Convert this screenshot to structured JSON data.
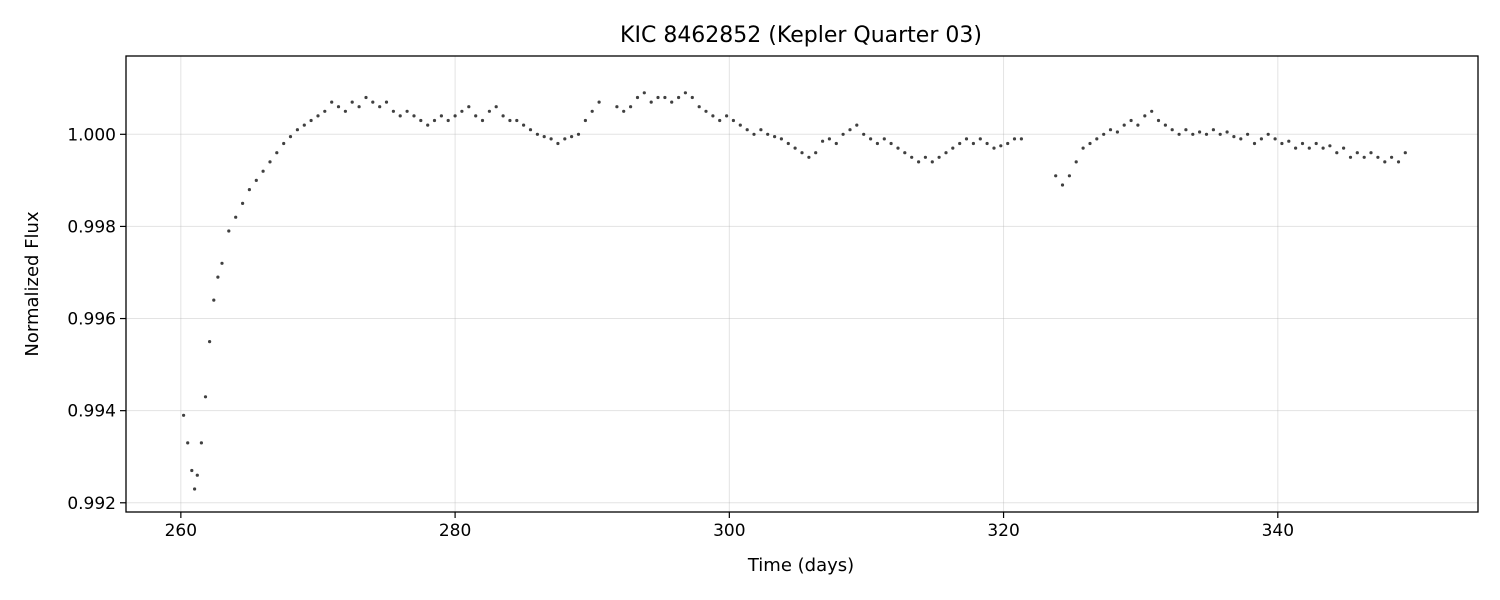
{
  "chart_data": {
    "type": "scatter",
    "title": "KIC 8462852 (Kepler Quarter 03)",
    "xlabel": "Time (days)",
    "ylabel": "Normalized Flux",
    "xlim": [
      256,
      354.6
    ],
    "ylim": [
      0.9918,
      1.0017
    ],
    "xticks": [
      260,
      280,
      300,
      320,
      340
    ],
    "yticks": [
      0.992,
      0.994,
      0.996,
      0.998,
      1.0
    ],
    "xtick_labels": [
      "260",
      "280",
      "300",
      "320",
      "340"
    ],
    "ytick_labels": [
      "0.992",
      "0.994",
      "0.996",
      "0.998",
      "1.000"
    ],
    "grid": true,
    "marker_color": "#000000",
    "series": [
      {
        "x": [
          260.2,
          260.5,
          260.8,
          261.0,
          261.2,
          261.5,
          261.8,
          262.1,
          262.4,
          262.7,
          263.0,
          263.5,
          264.0,
          264.5,
          265.0,
          265.5,
          266.0,
          266.5,
          267.0,
          267.5,
          268.0,
          268.5,
          269.0,
          269.5,
          270.0,
          270.5,
          271.0,
          271.5,
          272.0,
          272.5,
          273.0,
          273.5,
          274.0,
          274.5,
          275.0,
          275.5,
          276.0,
          276.5,
          277.0,
          277.5,
          278.0,
          278.5,
          279.0,
          279.5,
          280.0,
          280.5,
          281.0,
          281.5,
          282.0,
          282.5,
          283.0,
          283.5,
          284.0,
          284.5,
          285.0,
          285.5,
          286.0,
          286.5,
          287.0,
          287.5,
          288.0,
          288.5,
          289.0,
          289.5,
          290.0,
          290.5,
          291.8,
          292.3,
          292.8,
          293.3,
          293.8,
          294.3,
          294.8,
          295.3,
          295.8,
          296.3,
          296.8,
          297.3,
          297.8,
          298.3,
          298.8,
          299.3,
          299.8,
          300.3,
          300.8,
          301.3,
          301.8,
          302.3,
          302.8,
          303.3,
          303.8,
          304.3,
          304.8,
          305.3,
          305.8,
          306.3,
          306.8,
          307.3,
          307.8,
          308.3,
          308.8,
          309.3,
          309.8,
          310.3,
          310.8,
          311.3,
          311.8,
          312.3,
          312.8,
          313.3,
          313.8,
          314.3,
          314.8,
          315.3,
          315.8,
          316.3,
          316.8,
          317.3,
          317.8,
          318.3,
          318.8,
          319.3,
          319.8,
          320.3,
          320.8,
          321.3,
          323.8,
          324.3,
          324.8,
          325.3,
          325.8,
          326.3,
          326.8,
          327.3,
          327.8,
          328.3,
          328.8,
          329.3,
          329.8,
          330.3,
          330.8,
          331.3,
          331.8,
          332.3,
          332.8,
          333.3,
          333.8,
          334.3,
          334.8,
          335.3,
          335.8,
          336.3,
          336.8,
          337.3,
          337.8,
          338.3,
          338.8,
          339.3,
          339.8,
          340.3,
          340.8,
          341.3,
          341.8,
          342.3,
          342.8,
          343.3,
          343.8,
          344.3,
          344.8,
          345.3,
          345.8,
          346.3,
          346.8,
          347.3,
          347.8,
          348.3,
          348.8,
          349.3
        ],
        "y": [
          0.9939,
          0.9933,
          0.9927,
          0.9923,
          0.9926,
          0.9933,
          0.9943,
          0.9955,
          0.9964,
          0.9969,
          0.9972,
          0.9979,
          0.9982,
          0.9985,
          0.9988,
          0.999,
          0.9992,
          0.9994,
          0.9996,
          0.9998,
          0.99995,
          1.0001,
          1.0002,
          1.0003,
          1.0004,
          1.0005,
          1.0007,
          1.0006,
          1.0005,
          1.0007,
          1.0006,
          1.0008,
          1.0007,
          1.0006,
          1.0007,
          1.0005,
          1.0004,
          1.0005,
          1.0004,
          1.0003,
          1.0002,
          1.0003,
          1.0004,
          1.0003,
          1.0004,
          1.0005,
          1.0006,
          1.0004,
          1.0003,
          1.0005,
          1.0006,
          1.0004,
          1.0003,
          1.0003,
          1.0002,
          1.0001,
          1.0,
          0.99995,
          0.9999,
          0.9998,
          0.9999,
          0.99995,
          1.0,
          1.0003,
          1.0005,
          1.0007,
          1.0006,
          1.0005,
          1.0006,
          1.0008,
          1.0009,
          1.0007,
          1.0008,
          1.0008,
          1.0007,
          1.0008,
          1.0009,
          1.0008,
          1.0006,
          1.0005,
          1.0004,
          1.0003,
          1.0004,
          1.0003,
          1.0002,
          1.0001,
          1.0,
          1.0001,
          1.0,
          0.99995,
          0.9999,
          0.9998,
          0.9997,
          0.9996,
          0.9995,
          0.9996,
          0.99985,
          0.9999,
          0.9998,
          1.0,
          1.0001,
          1.0002,
          1.0,
          0.9999,
          0.9998,
          0.9999,
          0.9998,
          0.9997,
          0.9996,
          0.9995,
          0.9994,
          0.9995,
          0.9994,
          0.9995,
          0.9996,
          0.9997,
          0.9998,
          0.9999,
          0.9998,
          0.9999,
          0.9998,
          0.9997,
          0.99975,
          0.9998,
          0.9999,
          0.9999,
          0.9991,
          0.9989,
          0.9991,
          0.9994,
          0.9997,
          0.9998,
          0.9999,
          1.0,
          1.0001,
          1.00005,
          1.0002,
          1.0003,
          1.0002,
          1.0004,
          1.0005,
          1.0003,
          1.0002,
          1.0001,
          1.0,
          1.0001,
          1.0,
          1.00005,
          1.0,
          1.0001,
          1.0,
          1.00005,
          0.99995,
          0.9999,
          1.0,
          0.9998,
          0.9999,
          1.0,
          0.9999,
          0.9998,
          0.99985,
          0.9997,
          0.9998,
          0.9997,
          0.9998,
          0.9997,
          0.99975,
          0.9996,
          0.9997,
          0.9995,
          0.9996,
          0.9995,
          0.9996,
          0.9995,
          0.9994,
          0.9995,
          0.9994,
          0.9996
        ]
      }
    ]
  }
}
